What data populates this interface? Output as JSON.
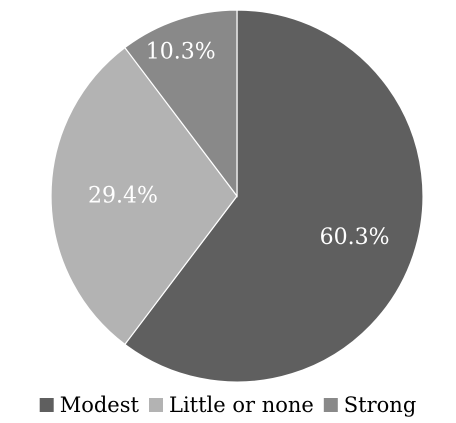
{
  "chart_data": {
    "type": "pie",
    "title": "",
    "start_angle_deg": 0,
    "direction": "clockwise",
    "categories": [
      "Modest",
      "Little or none",
      "Strong"
    ],
    "values": [
      60.3,
      29.4,
      10.3
    ],
    "labels": [
      "60.3%",
      "29.4%",
      "10.3%"
    ],
    "colors": [
      "#5f5f5f",
      "#b3b3b3",
      "#898989"
    ],
    "label_color": "#ffffff",
    "legend": {
      "position": "bottom",
      "entries": [
        "Modest",
        "Little or none",
        "Strong"
      ]
    }
  }
}
